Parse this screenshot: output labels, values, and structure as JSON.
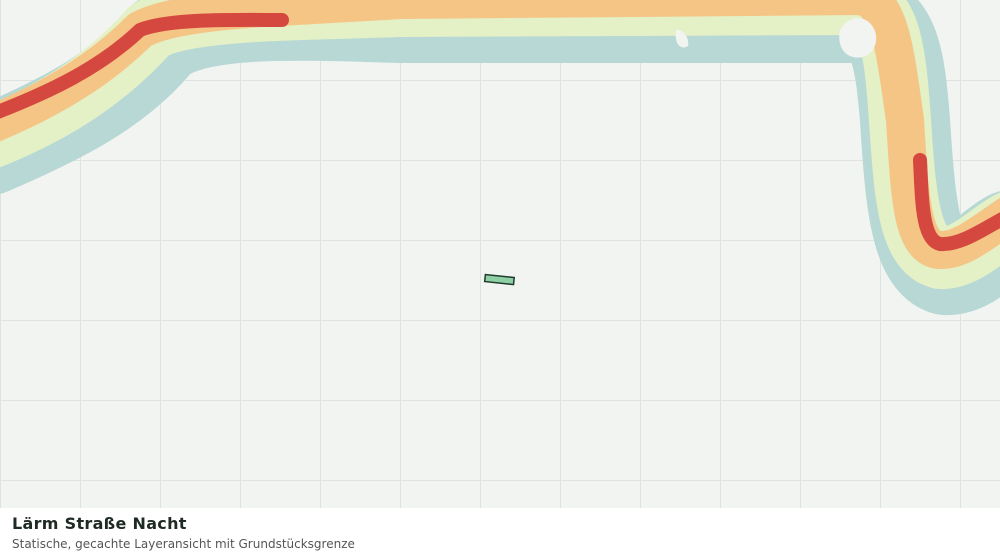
{
  "legend": {
    "title": "Lärm Straße Nacht",
    "subtitle": "Statische, gecachte Layeransicht mit Grundstücksgrenze"
  }
}
